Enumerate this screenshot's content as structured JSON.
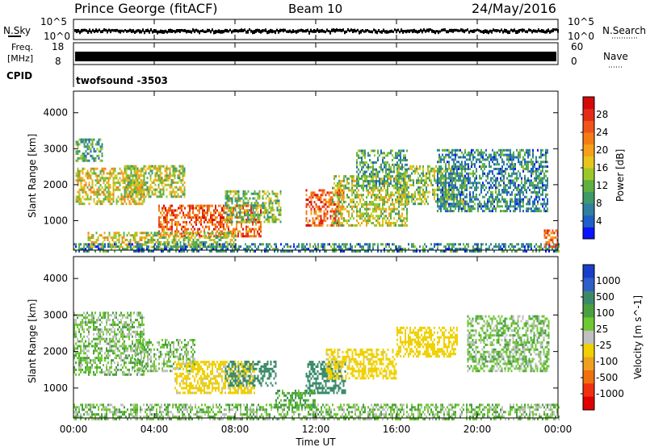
{
  "header": {
    "site": "Prince George (fitACF)",
    "beam": "Beam 10",
    "date": "24/May/2016"
  },
  "noise_panel": {
    "left_label": "N.Sky",
    "right_label": "N.Search",
    "left_ticks": [
      "10^5",
      "10^0"
    ],
    "right_ticks": [
      "10^5",
      "10^0"
    ]
  },
  "freq_panel": {
    "left_label_line1": "Freq.",
    "left_label_line2": "[MHz]",
    "right_label": "Nave",
    "left_ticks": [
      "18",
      "8"
    ],
    "right_ticks": [
      "60",
      "0"
    ]
  },
  "cpid_panel": {
    "label": "CPID",
    "program": "twofsound -3503"
  },
  "x_axis": {
    "label": "Time UT",
    "ticks": [
      "00:00",
      "04:00",
      "08:00",
      "12:00",
      "16:00",
      "20:00",
      "00:00"
    ]
  },
  "chart_data": [
    {
      "type": "heatmap",
      "panel": "power",
      "xlabel": "Time UT",
      "ylabel": "Slant Range [km]",
      "x_range_hours": [
        0,
        24
      ],
      "ylim": [
        180,
        4600
      ],
      "y_ticks": [
        1000,
        2000,
        3000,
        4000
      ],
      "colorbar": {
        "label": "Power [dB]",
        "ticks": [
          4,
          8,
          12,
          16,
          20,
          24,
          28
        ],
        "range": [
          0,
          32
        ],
        "colors": [
          "#0a14ff",
          "#1f5fc8",
          "#2f7fa0",
          "#3d9a6a",
          "#5fb043",
          "#9cc72a",
          "#e6c51c",
          "#f5a01a",
          "#f57c15",
          "#f0541a",
          "#e52a18",
          "#d40a0a"
        ]
      },
      "echo_regions": [
        {
          "t": [
            0.1,
            1.4
          ],
          "r": [
            2700,
            3300
          ],
          "v": 10
        },
        {
          "t": [
            0.1,
            3.5
          ],
          "r": [
            1500,
            2500
          ],
          "v": 17
        },
        {
          "t": [
            2.5,
            5.5
          ],
          "r": [
            1700,
            2600
          ],
          "v": 15
        },
        {
          "t": [
            4.2,
            9.3
          ],
          "r": [
            600,
            1500
          ],
          "v": 25
        },
        {
          "t": [
            0.7,
            3.5
          ],
          "r": [
            300,
            700
          ],
          "v": 18
        },
        {
          "t": [
            3.5,
            8.0
          ],
          "r": [
            300,
            700
          ],
          "v": 14
        },
        {
          "t": [
            7.5,
            10.3
          ],
          "r": [
            1000,
            1900
          ],
          "v": 13
        },
        {
          "t": [
            11.5,
            13.4
          ],
          "r": [
            900,
            1900
          ],
          "v": 25
        },
        {
          "t": [
            12.8,
            16.5
          ],
          "r": [
            900,
            2300
          ],
          "v": 15
        },
        {
          "t": [
            14.0,
            16.5
          ],
          "r": [
            2000,
            3000
          ],
          "v": 10
        },
        {
          "t": [
            16.0,
            19.5
          ],
          "r": [
            1500,
            2600
          ],
          "v": 13
        },
        {
          "t": [
            18.0,
            23.5
          ],
          "r": [
            1300,
            3000
          ],
          "v": 8
        },
        {
          "t": [
            0.0,
            24.0
          ],
          "r": [
            180,
            420
          ],
          "v": 8
        },
        {
          "t": [
            23.3,
            24.0
          ],
          "r": [
            300,
            800
          ],
          "v": 25
        }
      ]
    },
    {
      "type": "heatmap",
      "panel": "velocity",
      "xlabel": "Time UT",
      "ylabel": "Slant Range [km]",
      "x_range_hours": [
        0,
        24
      ],
      "ylim": [
        180,
        4600
      ],
      "y_ticks": [
        1000,
        2000,
        3000,
        4000
      ],
      "colorbar": {
        "label": "Velocity [m s^-1]",
        "ticks": [
          1000,
          500,
          100,
          25,
          -25,
          -100,
          -500,
          -1000
        ],
        "colors": [
          "#1a3cc8",
          "#2e5ec8",
          "#3a8a6a",
          "#4aa040",
          "#6ec832",
          "#c0c0c0",
          "#f0d000",
          "#f0a020",
          "#f07010",
          "#f03010",
          "#e00000"
        ]
      },
      "echo_regions": [
        {
          "t": [
            0.0,
            3.5
          ],
          "r": [
            1400,
            3100
          ],
          "v": 0
        },
        {
          "t": [
            3.0,
            6.0
          ],
          "r": [
            1500,
            2400
          ],
          "v": 0
        },
        {
          "t": [
            5.0,
            9.0
          ],
          "r": [
            900,
            1800
          ],
          "v": -150
        },
        {
          "t": [
            7.5,
            10.0
          ],
          "r": [
            1100,
            1800
          ],
          "v": 200
        },
        {
          "t": [
            11.5,
            13.5
          ],
          "r": [
            900,
            1800
          ],
          "v": 200
        },
        {
          "t": [
            12.5,
            16.0
          ],
          "r": [
            1300,
            2100
          ],
          "v": -150
        },
        {
          "t": [
            16.0,
            19.0
          ],
          "r": [
            1900,
            2700
          ],
          "v": -200
        },
        {
          "t": [
            19.5,
            23.5
          ],
          "r": [
            1500,
            3000
          ],
          "v": 0
        },
        {
          "t": [
            0.0,
            24.0
          ],
          "r": [
            180,
            600
          ],
          "v": 0
        },
        {
          "t": [
            10.0,
            12.0
          ],
          "r": [
            500,
            1000
          ],
          "v": 60
        }
      ]
    }
  ]
}
